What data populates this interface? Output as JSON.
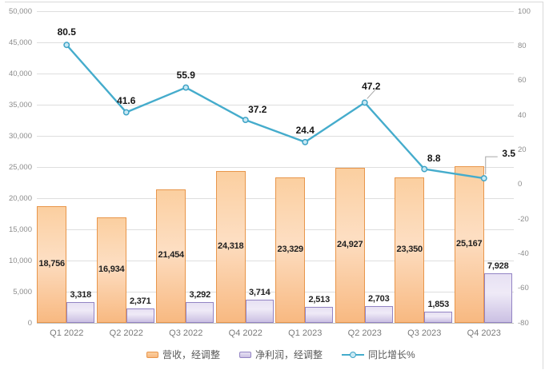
{
  "chart_data": {
    "type": "combo",
    "title": "",
    "categories": [
      "Q1 2022",
      "Q2 2022",
      "Q3 2022",
      "Q4 2022",
      "Q1 2023",
      "Q2 2023",
      "Q3 2023",
      "Q4 2023"
    ],
    "series": [
      {
        "name": "营收，经调整",
        "chart_type": "bar",
        "axis": "left",
        "values": [
          18756,
          16934,
          21454,
          24318,
          23329,
          24927,
          23350,
          25167
        ],
        "labels": [
          "18,756",
          "16,934",
          "21,454",
          "24,318",
          "23,329",
          "24,927",
          "23,350",
          "25,167"
        ]
      },
      {
        "name": "净利润，经调整",
        "chart_type": "bar",
        "axis": "left",
        "values": [
          3318,
          2371,
          3292,
          3714,
          2513,
          2703,
          1853,
          7928
        ],
        "labels": [
          "3,318",
          "2,371",
          "3,292",
          "3,714",
          "2,513",
          "2,703",
          "1,853",
          "7,928"
        ]
      },
      {
        "name": "同比增长%",
        "chart_type": "line",
        "axis": "right",
        "values": [
          80.5,
          41.6,
          55.9,
          37.2,
          24.4,
          47.2,
          8.8,
          3.5
        ],
        "labels": [
          "80.5",
          "41.6",
          "55.9",
          "37.2",
          "24.4",
          "47.2",
          "8.8",
          "3.5"
        ]
      }
    ],
    "left_axis": {
      "min": 0,
      "max": 50000,
      "step": 5000,
      "tick_labels": [
        "50,000",
        "45,000",
        "40,000",
        "35,000",
        "30,000",
        "25,000",
        "20,000",
        "15,000",
        "10,000",
        "5,000",
        "0"
      ]
    },
    "right_axis": {
      "min": -80,
      "max": 100,
      "step": 20,
      "tick_labels": [
        "100",
        "80",
        "60",
        "40",
        "20",
        "0",
        "-20",
        "-40",
        "-60",
        "-80"
      ]
    },
    "grid": true,
    "legend_position": "bottom"
  },
  "colors": {
    "revenue_border": "#E8964B",
    "revenue_fill_top": "#FBCFA0",
    "revenue_fill_bottom": "#F8B981",
    "profit_border": "#9384C4",
    "profit_fill_top": "#E7E1F3",
    "profit_fill_bottom": "#CBC0E3",
    "line": "#45ACCC",
    "marker_fill": "#C9E9F4",
    "marker_border": "#3EA3C6",
    "gridline": "#DEDEDE",
    "axis_line": "#BFBFBF",
    "tick_text": "#8C8C8C",
    "category_text": "#7A7A7A",
    "value_text": "#1F1F1F",
    "legend_text": "#595959",
    "chart_border": "#D9D9D9",
    "leader_line": "#A6A6A6"
  }
}
